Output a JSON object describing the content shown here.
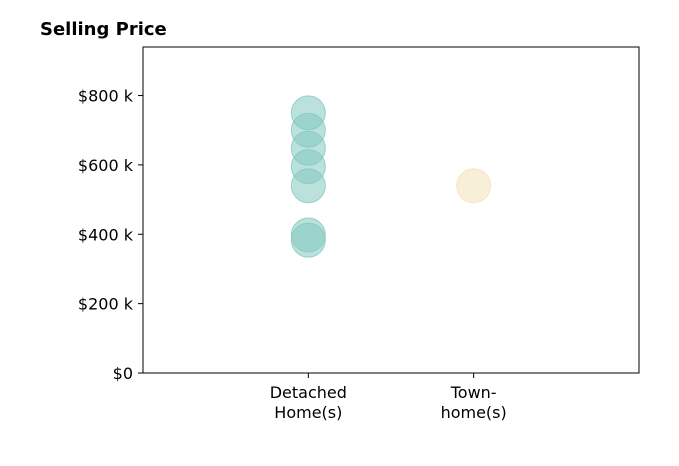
{
  "chart_data": {
    "type": "scatter",
    "title": "Selling Price",
    "xlabel": "",
    "ylabel": "",
    "categories": [
      "Detached\nHome(s)",
      "Town-\nhome(s)"
    ],
    "y_ticks": [
      0,
      200000,
      400000,
      600000,
      800000
    ],
    "y_tick_labels": [
      "$0",
      "$200 k",
      "$400 k",
      "$600 k",
      "$800 k"
    ],
    "ylim": [
      0,
      940000
    ],
    "xlim": [
      -1,
      2
    ],
    "grid": false,
    "legend": "none",
    "series": [
      {
        "category_index": 0,
        "color": "#84c8c0",
        "values": [
          750000,
          700000,
          648000,
          595000,
          540000,
          398000,
          383000
        ]
      },
      {
        "category_index": 1,
        "color": "#f3e3b5",
        "values": [
          540000
        ]
      }
    ]
  }
}
